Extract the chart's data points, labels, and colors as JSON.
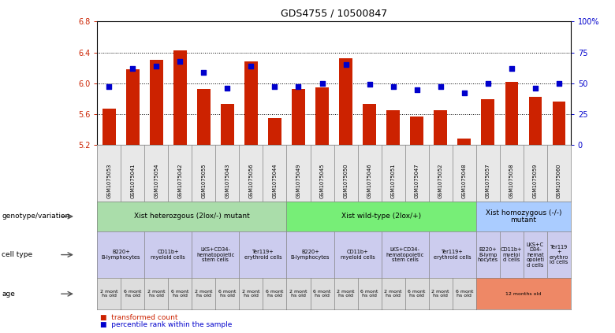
{
  "title": "GDS4755 / 10500847",
  "samples": [
    "GSM1075053",
    "GSM1075041",
    "GSM1075054",
    "GSM1075042",
    "GSM1075055",
    "GSM1075043",
    "GSM1075056",
    "GSM1075044",
    "GSM1075049",
    "GSM1075045",
    "GSM1075050",
    "GSM1075046",
    "GSM1075051",
    "GSM1075047",
    "GSM1075052",
    "GSM1075048",
    "GSM1075057",
    "GSM1075058",
    "GSM1075059",
    "GSM1075060"
  ],
  "bar_values": [
    5.67,
    6.18,
    6.3,
    6.43,
    5.93,
    5.73,
    6.28,
    5.55,
    5.93,
    5.95,
    6.32,
    5.73,
    5.65,
    5.57,
    5.65,
    5.28,
    5.79,
    6.02,
    5.82,
    5.76
  ],
  "dot_values": [
    47,
    62,
    64,
    68,
    59,
    46,
    64,
    47,
    47,
    50,
    65,
    49,
    47,
    45,
    47,
    42,
    50,
    62,
    46,
    50
  ],
  "ylim_left": [
    5.2,
    6.8
  ],
  "yticks_left": [
    5.2,
    5.6,
    6.0,
    6.4,
    6.8
  ],
  "ytick_labels_left": [
    "5.2",
    "5.6",
    "6.0",
    "6.4",
    "6.8"
  ],
  "yticks_right": [
    0,
    25,
    50,
    75,
    100
  ],
  "ytick_labels_right": [
    "0",
    "25",
    "50",
    "75",
    "100%"
  ],
  "bar_color": "#cc2200",
  "dot_color": "#0000cc",
  "genotype_groups": [
    {
      "label": "Xist heterozgous (2lox/-) mutant",
      "start": 0,
      "end": 8,
      "color": "#aaddaa"
    },
    {
      "label": "Xist wild-type (2lox/+)",
      "start": 8,
      "end": 16,
      "color": "#77ee77"
    },
    {
      "label": "Xist homozygous (-/-)\nmutant",
      "start": 16,
      "end": 20,
      "color": "#aaccff"
    }
  ],
  "cell_type_groups": [
    {
      "label": "B220+\nB-lymphocytes",
      "start": 0,
      "end": 2
    },
    {
      "label": "CD11b+\nmyeloid cells",
      "start": 2,
      "end": 4
    },
    {
      "label": "LKS+CD34-\nhematopoietic\nstem cells",
      "start": 4,
      "end": 6
    },
    {
      "label": "Ter119+\nerythroid cells",
      "start": 6,
      "end": 8
    },
    {
      "label": "B220+\nB-lymphocytes",
      "start": 8,
      "end": 10
    },
    {
      "label": "CD11b+\nmyeloid cells",
      "start": 10,
      "end": 12
    },
    {
      "label": "LKS+CD34-\nhematopoietic\nstem cells",
      "start": 12,
      "end": 14
    },
    {
      "label": "Ter119+\nerythroid cells",
      "start": 14,
      "end": 16
    },
    {
      "label": "B220+\nB-lymp\nhocytes",
      "start": 16,
      "end": 17
    },
    {
      "label": "CD11b+\nmyeloi\nd cells",
      "start": 17,
      "end": 18
    },
    {
      "label": "LKS+C\nD34-\nhemat\nopoleti\nd cells",
      "start": 18,
      "end": 19
    },
    {
      "label": "Ter119\n+\nerythro\nid cells",
      "start": 19,
      "end": 20
    }
  ],
  "cell_type_color": "#ccccee",
  "age_groups": [
    {
      "label": "2 mont\nhs old",
      "start": 0,
      "end": 1,
      "color": "#dddddd"
    },
    {
      "label": "6 mont\nhs old",
      "start": 1,
      "end": 2,
      "color": "#dddddd"
    },
    {
      "label": "2 mont\nhs old",
      "start": 2,
      "end": 3,
      "color": "#dddddd"
    },
    {
      "label": "6 mont\nhs old",
      "start": 3,
      "end": 4,
      "color": "#dddddd"
    },
    {
      "label": "2 mont\nhs old",
      "start": 4,
      "end": 5,
      "color": "#dddddd"
    },
    {
      "label": "6 mont\nhs old",
      "start": 5,
      "end": 6,
      "color": "#dddddd"
    },
    {
      "label": "2 mont\nhs old",
      "start": 6,
      "end": 7,
      "color": "#dddddd"
    },
    {
      "label": "6 mont\nhs old",
      "start": 7,
      "end": 8,
      "color": "#dddddd"
    },
    {
      "label": "2 mont\nhs old",
      "start": 8,
      "end": 9,
      "color": "#dddddd"
    },
    {
      "label": "6 mont\nhs old",
      "start": 9,
      "end": 10,
      "color": "#dddddd"
    },
    {
      "label": "2 mont\nhs old",
      "start": 10,
      "end": 11,
      "color": "#dddddd"
    },
    {
      "label": "6 mont\nhs old",
      "start": 11,
      "end": 12,
      "color": "#dddddd"
    },
    {
      "label": "2 mont\nhs old",
      "start": 12,
      "end": 13,
      "color": "#dddddd"
    },
    {
      "label": "6 mont\nhs old",
      "start": 13,
      "end": 14,
      "color": "#dddddd"
    },
    {
      "label": "2 mont\nhs old",
      "start": 14,
      "end": 15,
      "color": "#dddddd"
    },
    {
      "label": "6 mont\nhs old",
      "start": 15,
      "end": 16,
      "color": "#dddddd"
    },
    {
      "label": "12 months old",
      "start": 16,
      "end": 20,
      "color": "#ee8866"
    }
  ],
  "row_labels": [
    "genotype/variation",
    "cell type",
    "age"
  ]
}
